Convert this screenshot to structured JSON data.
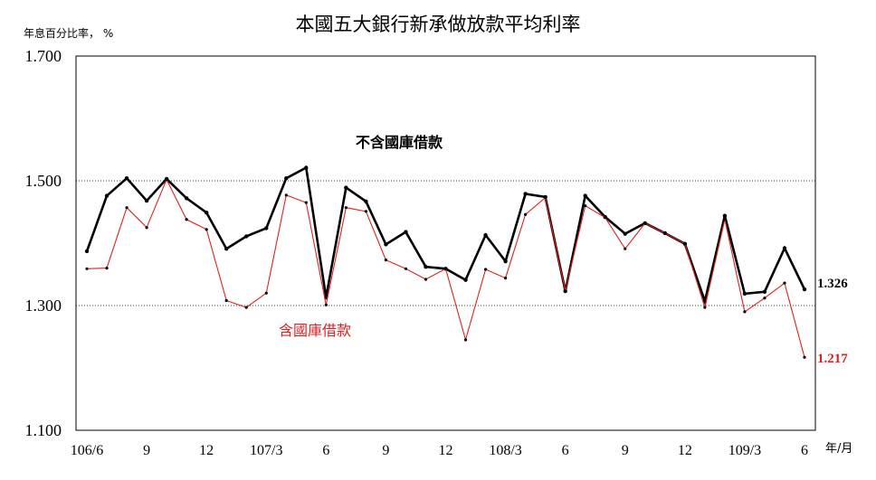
{
  "chart_data": {
    "type": "line",
    "title": "本國五大銀行新承做放款平均利率",
    "ylabel": "年息百分比率， %",
    "xlabel": "年/月",
    "ylim": [
      1.1,
      1.7
    ],
    "yticks": [
      "1.700",
      "1.500",
      "1.300",
      "1.100"
    ],
    "ytick_values": [
      1.7,
      1.5,
      1.3,
      1.1
    ],
    "xticks": [
      {
        "label": "106/6",
        "index": 0
      },
      {
        "label": "9",
        "index": 3
      },
      {
        "label": "12",
        "index": 6
      },
      {
        "label": "107/3",
        "index": 9
      },
      {
        "label": "6",
        "index": 12
      },
      {
        "label": "9",
        "index": 15
      },
      {
        "label": "12",
        "index": 18
      },
      {
        "label": "108/3",
        "index": 21
      },
      {
        "label": "6",
        "index": 24
      },
      {
        "label": "9",
        "index": 27
      },
      {
        "label": "12",
        "index": 30
      },
      {
        "label": "109/3",
        "index": 33
      },
      {
        "label": "6",
        "index": 36
      }
    ],
    "grid_lines": [
      1.5,
      1.3
    ],
    "series": [
      {
        "name": "不含國庫借款",
        "color": "#000000",
        "end_label": "1.326",
        "values": [
          1.387,
          1.476,
          1.504,
          1.468,
          1.503,
          1.472,
          1.449,
          1.391,
          1.411,
          1.424,
          1.504,
          1.521,
          1.313,
          1.489,
          1.467,
          1.398,
          1.418,
          1.362,
          1.359,
          1.341,
          1.413,
          1.371,
          1.479,
          1.474,
          1.323,
          1.476,
          1.442,
          1.415,
          1.432,
          1.416,
          1.399,
          1.307,
          1.444,
          1.319,
          1.322,
          1.392,
          1.326
        ]
      },
      {
        "name": "含國庫借款",
        "color": "#e02020",
        "end_label": "1.217",
        "values": [
          1.359,
          1.36,
          1.457,
          1.425,
          1.502,
          1.438,
          1.422,
          1.308,
          1.297,
          1.32,
          1.477,
          1.465,
          1.301,
          1.457,
          1.451,
          1.373,
          1.359,
          1.342,
          1.359,
          1.245,
          1.358,
          1.344,
          1.446,
          1.473,
          1.323,
          1.46,
          1.441,
          1.391,
          1.432,
          1.416,
          1.399,
          1.297,
          1.438,
          1.29,
          1.312,
          1.336,
          1.217
        ]
      }
    ]
  }
}
